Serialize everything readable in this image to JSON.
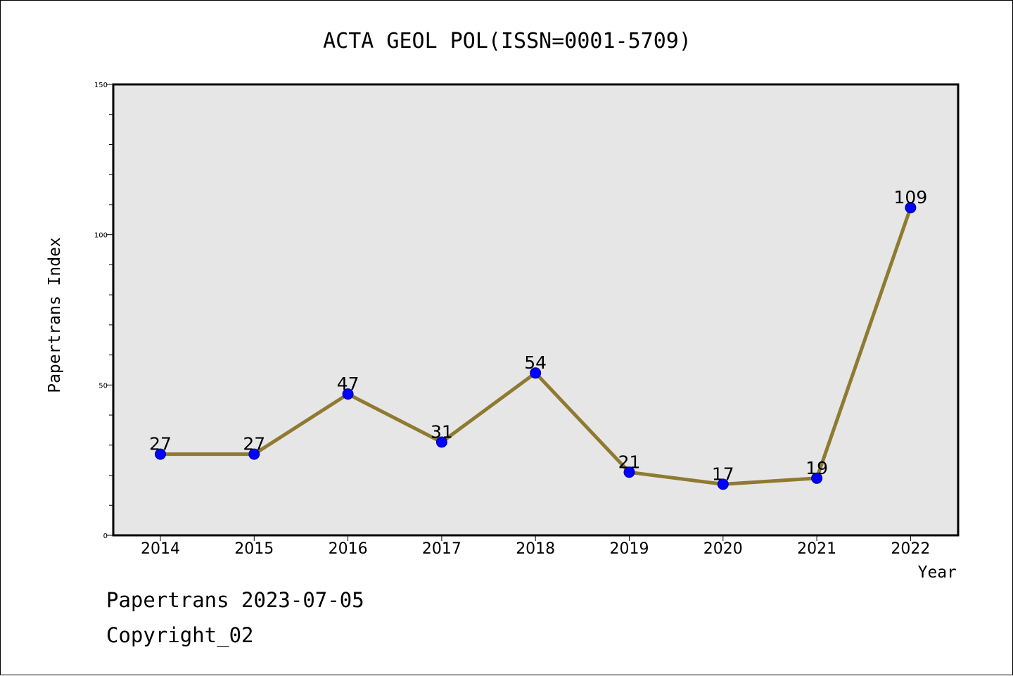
{
  "chart_data": {
    "type": "line",
    "title": "ACTA GEOL POL(ISSN=0001-5709)",
    "xlabel": "Year",
    "ylabel": "Papertrans Index",
    "categories": [
      "2014",
      "2015",
      "2016",
      "2017",
      "2018",
      "2019",
      "2020",
      "2021",
      "2022"
    ],
    "series": [
      {
        "values": [
          27,
          27,
          47,
          31,
          54,
          21,
          17,
          19,
          109
        ]
      }
    ],
    "data_labels": [
      "27",
      "27",
      "47",
      "31",
      "54",
      "21",
      "17",
      "19",
      "109"
    ],
    "ylim": [
      0,
      150
    ],
    "yticks": [
      0,
      50,
      100,
      150
    ],
    "ytick_labels": [
      "0",
      "50",
      "100",
      "150"
    ],
    "y_minor_step": 10,
    "grid": false,
    "colors": {
      "plot_background": "#e6e6e6",
      "line": "#8f7a32",
      "marker": "#0000ff"
    }
  },
  "footer": {
    "line1": "Papertrans 2023-07-05",
    "line2": "Copyright_02"
  }
}
